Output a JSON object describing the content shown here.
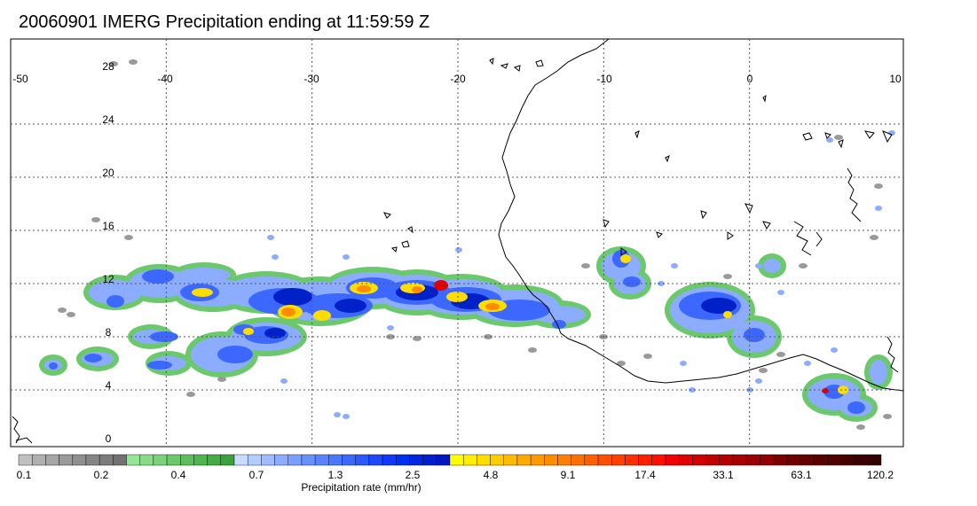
{
  "title": "20060901 IMERG Precipitation ending at 11:59:59 Z",
  "map": {
    "lon_range": [
      -50,
      10
    ],
    "lat_range": [
      -1,
      30
    ],
    "lon_ticks": [
      "-50",
      "-40",
      "-30",
      "-20",
      "-10",
      "0",
      "10"
    ],
    "lat_ticks": [
      "28",
      "24",
      "20",
      "16",
      "12",
      "8",
      "4",
      "0"
    ],
    "gridlines": "dotted",
    "background": "#ffffff"
  },
  "colorbar": {
    "title": "Precipitation rate (mm/hr)",
    "labels": [
      "0.1",
      "0.2",
      "0.4",
      "0.7",
      "1.3",
      "2.5",
      "4.8",
      "9.1",
      "17.4",
      "33.1",
      "63.1",
      "120.2"
    ],
    "colors": [
      "#c0c0c0",
      "#b0b0b0",
      "#a6a6a6",
      "#9a9a9a",
      "#909090",
      "#868686",
      "#7c7c7c",
      "#727272",
      "#96e696",
      "#88dc88",
      "#7ad27a",
      "#6cc86c",
      "#5ebe5e",
      "#50b450",
      "#46aa46",
      "#3ca03c",
      "#c8dcff",
      "#b4ccff",
      "#a0bcff",
      "#8cacff",
      "#7aa0ff",
      "#6890ff",
      "#5a84ff",
      "#4c78ff",
      "#3c68ff",
      "#2c58ff",
      "#1e48ff",
      "#1038ff",
      "#0030f0",
      "#0028e0",
      "#0020d0",
      "#0018c0",
      "#ffff00",
      "#ffee00",
      "#ffdd00",
      "#ffcc00",
      "#ffbb00",
      "#ffaa00",
      "#ff9900",
      "#ff8c00",
      "#ff7f00",
      "#ff7000",
      "#ff6000",
      "#ff5000",
      "#ff4000",
      "#ff3000",
      "#ff2000",
      "#ff1000",
      "#f00000",
      "#e00000",
      "#d00000",
      "#c00000",
      "#b40000",
      "#a80000",
      "#9c0000",
      "#900000",
      "#7a0000",
      "#6e0000",
      "#640000",
      "#5a0000",
      "#500000",
      "#460000",
      "#3c0000",
      "#320000"
    ]
  },
  "precip_palette": {
    "trace": "#9a9a9a",
    "light": "#6cc86c",
    "pale_blue": "#8cacff",
    "blue": "#3c68ff",
    "dark_blue": "#0020c8",
    "yellow": "#ffdd00",
    "orange": "#ff8c00",
    "red": "#e00000"
  }
}
